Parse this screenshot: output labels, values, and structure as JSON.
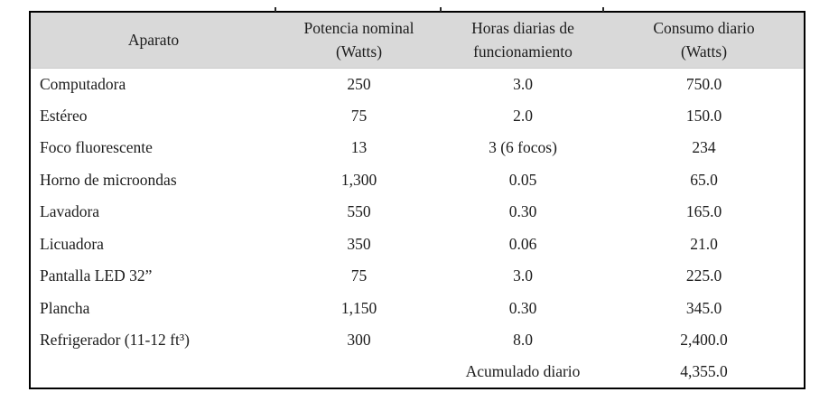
{
  "header": {
    "col1": {
      "line1": "Aparato"
    },
    "col2": {
      "line1": "Potencia nominal",
      "line2": "(Watts)"
    },
    "col3": {
      "line1": "Horas diarias de",
      "line2": "funcionamiento"
    },
    "col4": {
      "line1": "Consumo diario",
      "line2": "(Watts)"
    }
  },
  "rows": [
    {
      "aparato": "Computadora",
      "potencia": "250",
      "horas": "3.0",
      "consumo": "750.0"
    },
    {
      "aparato": "Estéreo",
      "potencia": "75",
      "horas": "2.0",
      "consumo": "150.0"
    },
    {
      "aparato": "Foco fluorescente",
      "potencia": "13",
      "horas": "3 (6 focos)",
      "consumo": "234"
    },
    {
      "aparato": "Horno de microondas",
      "potencia": "1,300",
      "horas": "0.05",
      "consumo": "65.0"
    },
    {
      "aparato": "Lavadora",
      "potencia": "550",
      "horas": "0.30",
      "consumo": "165.0"
    },
    {
      "aparato": "Licuadora",
      "potencia": "350",
      "horas": "0.06",
      "consumo": "21.0"
    },
    {
      "aparato": "Pantalla LED 32”",
      "potencia": "75",
      "horas": "3.0",
      "consumo": "225.0"
    },
    {
      "aparato": "Plancha",
      "potencia": "1,150",
      "horas": "0.30",
      "consumo": "345.0"
    },
    {
      "aparato": "Refrigerador (11-12 ft³)",
      "potencia": "300",
      "horas": "8.0",
      "consumo": "2,400.0"
    }
  ],
  "footer": {
    "label": "Acumulado diario",
    "value": "4,355.0"
  },
  "colors": {
    "header_bg": "#d9d9d9",
    "border": "#000000",
    "text": "#1c1c1c",
    "page_bg": "#ffffff"
  }
}
